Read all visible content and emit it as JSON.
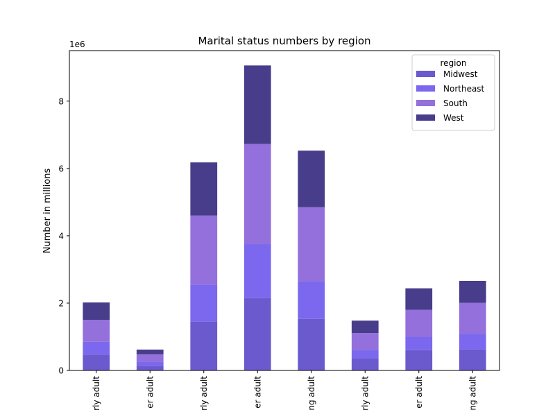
{
  "chart_data": {
    "type": "bar",
    "stacked": true,
    "title": "Marital status numbers by region",
    "xlabel": "",
    "ylabel": "Number in millions",
    "y_offset_label": "1e6",
    "ylim": [
      0,
      9500000
    ],
    "yticks": [
      0,
      2000000,
      4000000,
      6000000,
      8000000
    ],
    "ytick_labels": [
      "0",
      "2",
      "4",
      "6",
      "8"
    ],
    "categories": [
      "rly adult",
      "er adult",
      "rly adult",
      "er adult",
      "ng adult",
      "rly adult",
      "er adult",
      "ng adult"
    ],
    "series": [
      {
        "name": "Midwest",
        "color": "#6a5acd",
        "values": [
          470000,
          140000,
          1450000,
          2150000,
          1530000,
          350000,
          600000,
          620000
        ]
      },
      {
        "name": "Northeast",
        "color": "#7b68ee",
        "values": [
          380000,
          120000,
          1100000,
          1600000,
          1120000,
          260000,
          400000,
          470000
        ]
      },
      {
        "name": "South",
        "color": "#9370db",
        "values": [
          650000,
          220000,
          2050000,
          2980000,
          2200000,
          500000,
          800000,
          920000
        ]
      },
      {
        "name": "West",
        "color": "#483d8b",
        "values": [
          520000,
          140000,
          1580000,
          2330000,
          1680000,
          370000,
          640000,
          650000
        ]
      }
    ],
    "legend": {
      "title": "region",
      "placement": "top-right"
    },
    "grid": false
  }
}
